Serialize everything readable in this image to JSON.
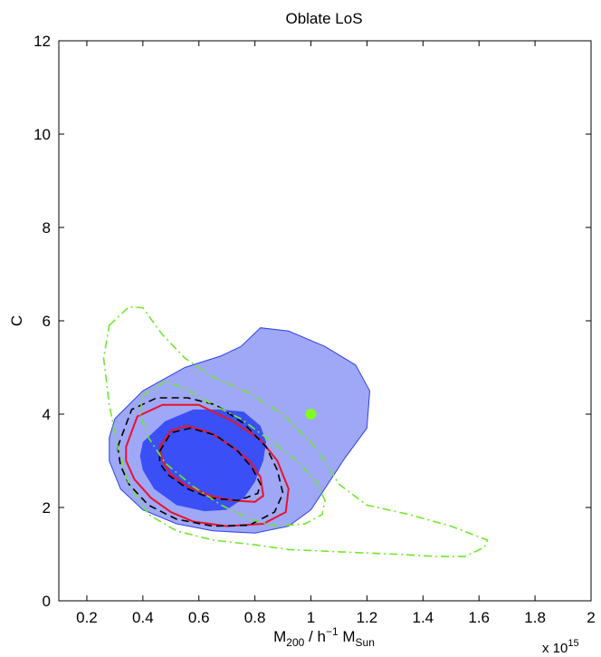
{
  "chart_data": {
    "type": "contour",
    "title": "Oblate LoS",
    "xlabel": {
      "main": "M",
      "sub1": "200",
      "mid": " / h",
      "sup": "−1",
      "main2": " M",
      "sub2": "Sun"
    },
    "ylabel": "C",
    "x_multiplier": {
      "base": "x 10",
      "exp": "15"
    },
    "xlim": [
      0.1,
      2.0
    ],
    "ylim": [
      0,
      12
    ],
    "xticks": [
      0.2,
      0.4,
      0.6,
      0.8,
      1.0,
      1.2,
      1.4,
      1.6,
      1.8,
      2.0
    ],
    "xtick_labels": [
      "0.2",
      "0.4",
      "0.6",
      "0.8",
      "1",
      "1.2",
      "1.4",
      "1.6",
      "1.8",
      "2"
    ],
    "yticks": [
      0,
      2,
      4,
      6,
      8,
      10,
      12
    ],
    "ytick_labels": [
      "0",
      "2",
      "4",
      "6",
      "8",
      "10",
      "12"
    ],
    "grid": false,
    "colors": {
      "outer_fill": "#9fa7f7",
      "outer_edge": "#3044e6",
      "inner_fill": "#3b4ff6",
      "red": "#e8142c",
      "black": "#000000",
      "green": "#6fe82e",
      "marker": "#7fff1f"
    },
    "series": [
      {
        "style": "filled-outer",
        "points": [
          [
            0.3,
            3.9
          ],
          [
            0.4,
            4.5
          ],
          [
            0.55,
            5.0
          ],
          [
            0.68,
            5.25
          ],
          [
            0.75,
            5.45
          ],
          [
            0.82,
            5.85
          ],
          [
            0.92,
            5.78
          ],
          [
            1.05,
            5.45
          ],
          [
            1.16,
            5.05
          ],
          [
            1.21,
            4.5
          ],
          [
            1.2,
            3.7
          ],
          [
            1.12,
            3.05
          ],
          [
            1.06,
            2.5
          ],
          [
            1.0,
            1.95
          ],
          [
            0.92,
            1.6
          ],
          [
            0.8,
            1.45
          ],
          [
            0.65,
            1.5
          ],
          [
            0.52,
            1.65
          ],
          [
            0.4,
            1.95
          ],
          [
            0.32,
            2.4
          ],
          [
            0.28,
            3.0
          ],
          [
            0.28,
            3.5
          ]
        ]
      },
      {
        "style": "filled-inner",
        "points": [
          [
            0.4,
            3.4
          ],
          [
            0.48,
            3.85
          ],
          [
            0.58,
            4.1
          ],
          [
            0.68,
            4.1
          ],
          [
            0.76,
            4.05
          ],
          [
            0.82,
            3.75
          ],
          [
            0.84,
            3.4
          ],
          [
            0.83,
            3.0
          ],
          [
            0.8,
            2.55
          ],
          [
            0.76,
            2.2
          ],
          [
            0.7,
            1.95
          ],
          [
            0.62,
            1.92
          ],
          [
            0.52,
            2.05
          ],
          [
            0.44,
            2.4
          ],
          [
            0.4,
            2.8
          ],
          [
            0.39,
            3.1
          ]
        ]
      },
      {
        "style": "red-outer",
        "points": [
          [
            0.34,
            3.3
          ],
          [
            0.38,
            3.95
          ],
          [
            0.47,
            4.2
          ],
          [
            0.6,
            4.2
          ],
          [
            0.72,
            3.85
          ],
          [
            0.82,
            3.45
          ],
          [
            0.88,
            3.0
          ],
          [
            0.92,
            2.4
          ],
          [
            0.91,
            1.9
          ],
          [
            0.83,
            1.65
          ],
          [
            0.7,
            1.6
          ],
          [
            0.58,
            1.7
          ],
          [
            0.5,
            1.9
          ],
          [
            0.43,
            2.2
          ],
          [
            0.37,
            2.6
          ],
          [
            0.34,
            3.0
          ]
        ]
      },
      {
        "style": "red-inner",
        "points": [
          [
            0.46,
            3.3
          ],
          [
            0.5,
            3.65
          ],
          [
            0.56,
            3.75
          ],
          [
            0.64,
            3.6
          ],
          [
            0.72,
            3.3
          ],
          [
            0.78,
            3.0
          ],
          [
            0.82,
            2.65
          ],
          [
            0.83,
            2.25
          ],
          [
            0.8,
            2.12
          ],
          [
            0.72,
            2.15
          ],
          [
            0.64,
            2.25
          ],
          [
            0.56,
            2.45
          ],
          [
            0.5,
            2.7
          ],
          [
            0.47,
            3.0
          ]
        ]
      },
      {
        "style": "black-dashed-outer",
        "points": [
          [
            0.31,
            3.3
          ],
          [
            0.36,
            4.1
          ],
          [
            0.45,
            4.35
          ],
          [
            0.56,
            4.35
          ],
          [
            0.66,
            4.2
          ],
          [
            0.76,
            3.8
          ],
          [
            0.84,
            3.3
          ],
          [
            0.88,
            2.8
          ],
          [
            0.9,
            2.3
          ],
          [
            0.87,
            1.9
          ],
          [
            0.78,
            1.62
          ],
          [
            0.65,
            1.6
          ],
          [
            0.52,
            1.75
          ],
          [
            0.42,
            2.05
          ],
          [
            0.35,
            2.5
          ],
          [
            0.32,
            2.9
          ]
        ]
      },
      {
        "style": "black-dashed-inner",
        "points": [
          [
            0.46,
            3.2
          ],
          [
            0.5,
            3.6
          ],
          [
            0.57,
            3.7
          ],
          [
            0.66,
            3.55
          ],
          [
            0.74,
            3.2
          ],
          [
            0.79,
            2.85
          ],
          [
            0.82,
            2.5
          ],
          [
            0.81,
            2.3
          ],
          [
            0.74,
            2.15
          ],
          [
            0.64,
            2.2
          ],
          [
            0.56,
            2.4
          ],
          [
            0.49,
            2.7
          ],
          [
            0.46,
            2.95
          ]
        ]
      },
      {
        "style": "green-dashdot-outer",
        "points": [
          [
            0.28,
            5.9
          ],
          [
            0.35,
            6.3
          ],
          [
            0.4,
            6.28
          ],
          [
            0.47,
            5.7
          ],
          [
            0.55,
            5.2
          ],
          [
            0.65,
            4.8
          ],
          [
            0.78,
            4.45
          ],
          [
            0.9,
            4.0
          ],
          [
            1.0,
            3.4
          ],
          [
            1.05,
            3.0
          ],
          [
            1.1,
            2.5
          ],
          [
            1.2,
            2.05
          ],
          [
            1.35,
            1.85
          ],
          [
            1.5,
            1.6
          ],
          [
            1.63,
            1.3
          ],
          [
            1.62,
            1.15
          ],
          [
            1.55,
            0.95
          ],
          [
            1.45,
            0.95
          ],
          [
            1.3,
            1.0
          ],
          [
            1.1,
            1.05
          ],
          [
            0.92,
            1.1
          ],
          [
            0.8,
            1.2
          ],
          [
            0.65,
            1.3
          ],
          [
            0.52,
            1.5
          ],
          [
            0.42,
            1.85
          ],
          [
            0.35,
            2.5
          ],
          [
            0.31,
            3.3
          ],
          [
            0.28,
            4.2
          ],
          [
            0.26,
            5.2
          ]
        ]
      },
      {
        "style": "green-dashdot-inner",
        "points": [
          [
            0.4,
            4.4
          ],
          [
            0.48,
            4.7
          ],
          [
            0.55,
            4.55
          ],
          [
            0.65,
            4.2
          ],
          [
            0.75,
            3.9
          ],
          [
            0.85,
            3.45
          ],
          [
            0.95,
            3.0
          ],
          [
            1.02,
            2.55
          ],
          [
            1.05,
            2.15
          ],
          [
            1.04,
            1.85
          ],
          [
            0.98,
            1.65
          ],
          [
            0.88,
            1.6
          ],
          [
            0.78,
            1.75
          ],
          [
            0.68,
            2.05
          ],
          [
            0.58,
            2.45
          ],
          [
            0.48,
            2.95
          ],
          [
            0.42,
            3.5
          ],
          [
            0.39,
            4.0
          ]
        ]
      }
    ],
    "marker": {
      "x": 1.0,
      "y": 4.0
    }
  }
}
